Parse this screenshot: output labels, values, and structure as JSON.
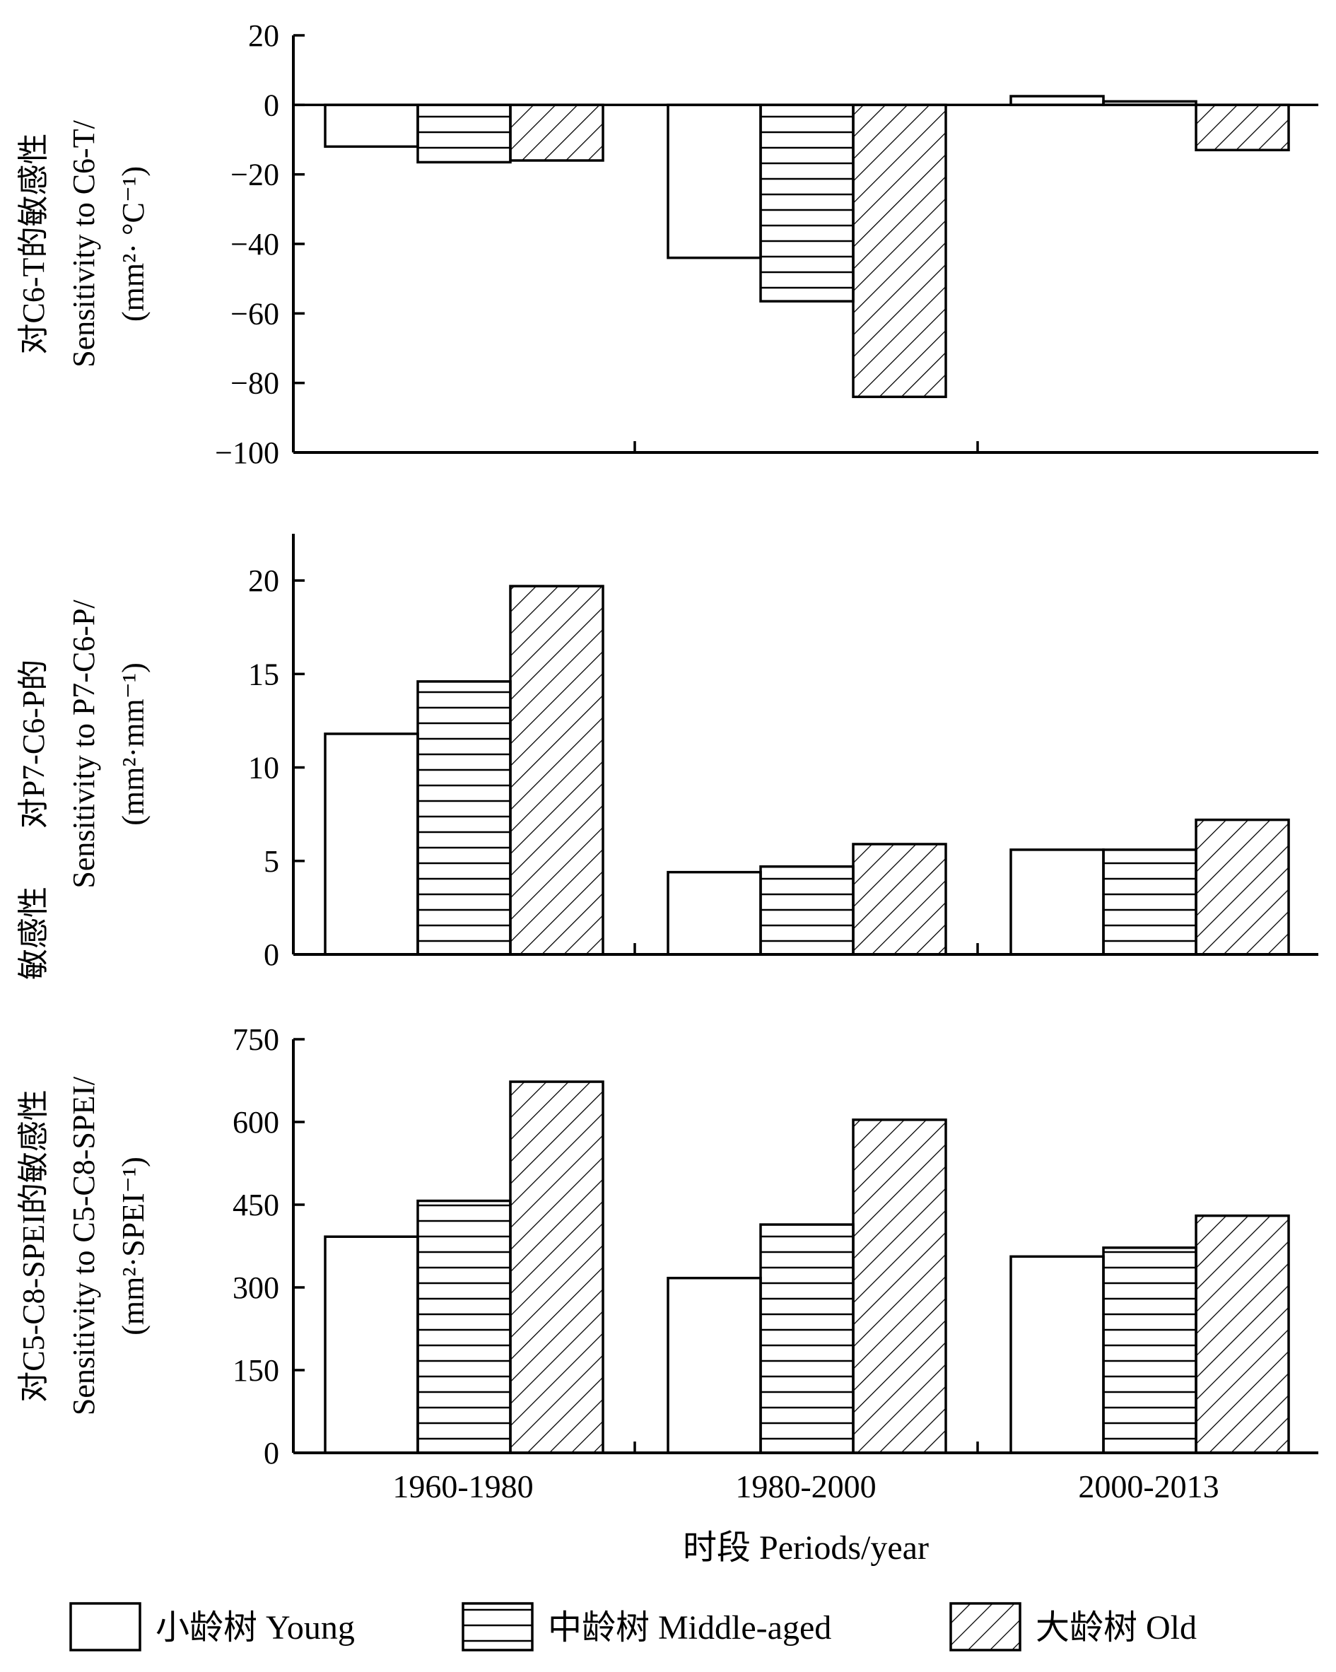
{
  "chart_data": [
    {
      "type": "bar",
      "categories": [
        "1960-1980",
        "1980-2000",
        "2000-2013"
      ],
      "series": [
        {
          "name": "小龄树 Young",
          "values": [
            -12,
            -44,
            2.5
          ]
        },
        {
          "name": "中龄树 Middle-aged",
          "values": [
            -16.5,
            -56.5,
            1
          ]
        },
        {
          "name": "大龄树 Old",
          "values": [
            -16,
            -84,
            -13
          ]
        }
      ],
      "ylabel_lines": [
        "对C6-T的敏感性",
        "Sensitivity to C6-T/",
        "(mm²· °C⁻¹)"
      ],
      "ylim": [
        -100,
        20
      ],
      "yticks": [
        20,
        0,
        -20,
        -40,
        -60,
        -80,
        -100
      ],
      "ytick_labels": [
        "20",
        "0",
        "−20",
        "−40",
        "−60",
        "−80",
        "−100"
      ]
    },
    {
      "type": "bar",
      "categories": [
        "1960-1980",
        "1980-2000",
        "2000-2013"
      ],
      "series": [
        {
          "name": "小龄树 Young",
          "values": [
            11.8,
            4.4,
            5.6
          ]
        },
        {
          "name": "中龄树 Middle-aged",
          "values": [
            14.6,
            4.7,
            5.6
          ]
        },
        {
          "name": "大龄树 Old",
          "values": [
            19.7,
            5.9,
            7.2
          ]
        }
      ],
      "ylabel_lines": [
        "对P7-C6-P的",
        "Sensitivity to P7-C6-P/",
        "(mm²·mm⁻¹)"
      ],
      "ylim": [
        0,
        22.5
      ],
      "yticks": [
        20,
        15,
        10,
        5,
        0
      ],
      "ytick_labels": [
        "20",
        "15",
        "10",
        "5",
        "0"
      ]
    },
    {
      "type": "bar",
      "categories": [
        "1960-1980",
        "1980-2000",
        "2000-2013"
      ],
      "series": [
        {
          "name": "小龄树 Young",
          "values": [
            392,
            317,
            356
          ]
        },
        {
          "name": "中龄树 Middle-aged",
          "values": [
            457,
            414,
            372
          ]
        },
        {
          "name": "大龄树 Old",
          "values": [
            673,
            604,
            430
          ]
        }
      ],
      "ylabel_lines": [
        "对C5-C8-SPEI的敏感性",
        "Sensitivity to C5-C8-SPEI/",
        "(mm²·SPEI⁻¹)"
      ],
      "ylim": [
        0,
        750
      ],
      "yticks": [
        750,
        600,
        450,
        300,
        150,
        0
      ],
      "ytick_labels": [
        "750",
        "600",
        "450",
        "300",
        "150",
        "0"
      ]
    }
  ],
  "shared_axis": {
    "middle_ylabel_extra": "敏感性",
    "xlabel": "时段  Periods/year"
  },
  "legend": [
    {
      "label": "小龄树  Young",
      "pattern": "none"
    },
    {
      "label": "中龄树  Middle-aged",
      "pattern": "horizontal"
    },
    {
      "label": "大龄树  Old",
      "pattern": "diagonal"
    }
  ]
}
